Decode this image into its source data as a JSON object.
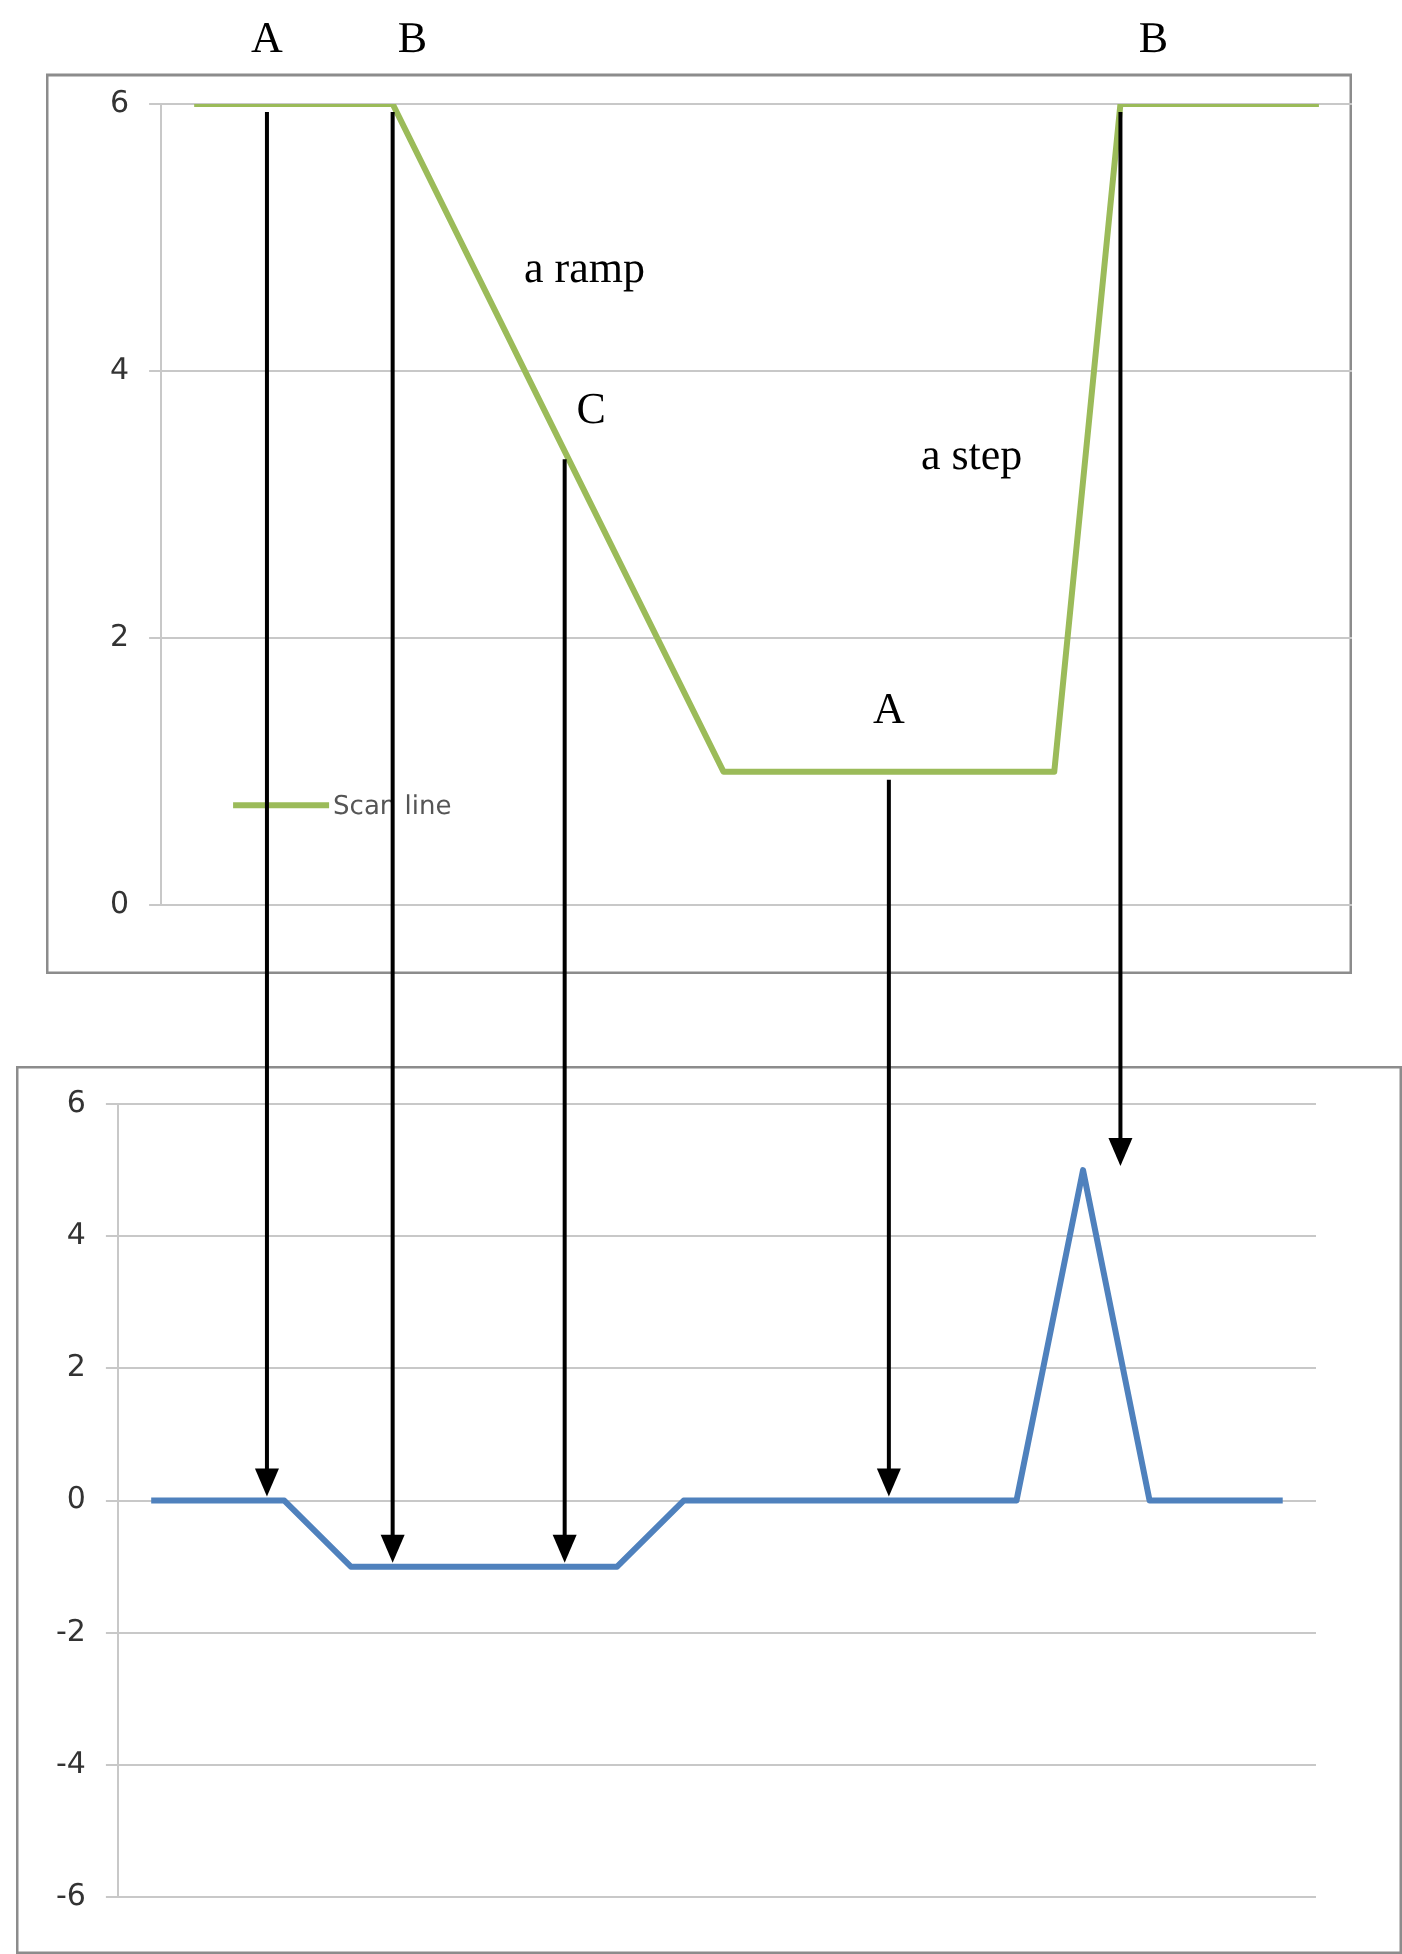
{
  "chart_data": [
    {
      "type": "line",
      "categories": [
        null,
        null,
        null,
        null,
        null,
        null,
        null,
        null,
        null,
        null,
        null,
        null,
        null,
        null,
        null,
        null,
        null,
        null
      ],
      "series": [
        {
          "name": "Scan line",
          "color": "#9bbb59",
          "values": [
            6,
            6,
            6,
            6,
            5,
            4,
            3,
            2,
            1,
            1,
            1,
            1,
            1,
            1,
            6,
            6,
            6,
            6
          ]
        }
      ],
      "ylim": [
        0,
        6
      ],
      "yticks": [
        0,
        2,
        4,
        6
      ],
      "grid": "y",
      "legend": "bottom left",
      "marker": "none",
      "annotations": [
        "A",
        "B",
        "C",
        "A",
        "B",
        "a ramp",
        "a step"
      ]
    },
    {
      "type": "line",
      "categories": [
        null,
        null,
        null,
        null,
        null,
        null,
        null,
        null,
        null,
        null,
        null,
        null,
        null,
        null,
        null,
        null,
        null,
        null
      ],
      "series": [
        {
          "color": "#4f81bd",
          "values": [
            0,
            0,
            0,
            -1,
            -1,
            -1,
            -1,
            -1,
            0,
            0,
            0,
            0,
            0,
            0,
            5,
            0,
            0,
            0
          ]
        }
      ],
      "ylim": [
        -6,
        6
      ],
      "yticks": [
        -6,
        -4,
        -2,
        0,
        2,
        4,
        6
      ],
      "grid": "y",
      "marker": "none"
    }
  ]
}
